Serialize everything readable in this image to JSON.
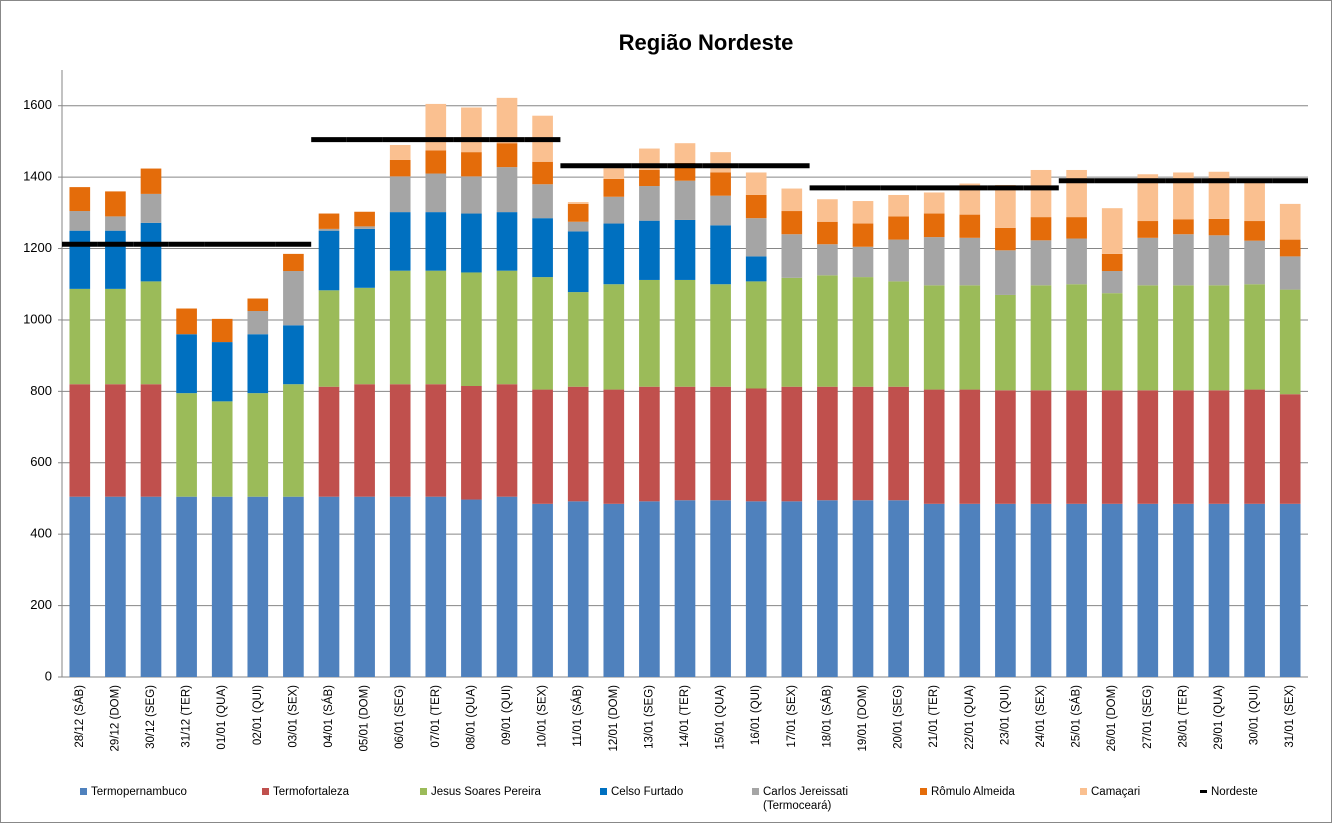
{
  "chart_data": {
    "type": "bar",
    "stacked": true,
    "title": "Região Nordeste",
    "categories": [
      "28/12 (SÁB)",
      "29/12 (DOM)",
      "30/12 (SEG)",
      "31/12 (TER)",
      "01/01 (QUA)",
      "02/01 (QUI)",
      "03/01 (SEX)",
      "04/01 (SÁB)",
      "05/01 (DOM)",
      "06/01 (SEG)",
      "07/01 (TER)",
      "08/01 (QUA)",
      "09/01 (QUI)",
      "10/01 (SEX)",
      "11/01 (SÁB)",
      "12/01 (DOM)",
      "13/01 (SEG)",
      "14/01 (TER)",
      "15/01 (QUA)",
      "16/01 (QUI)",
      "17/01 (SEX)",
      "18/01 (SÁB)",
      "19/01 (DOM)",
      "20/01 (SEG)",
      "21/01 (TER)",
      "22/01 (QUA)",
      "23/01 (QUI)",
      "24/01 (SEX)",
      "25/01 (SÁB)",
      "26/01 (DOM)",
      "27/01 (SEG)",
      "28/01 (TER)",
      "29/01 (QUA)",
      "30/01 (QUI)",
      "31/01 (SEX)"
    ],
    "ylim": [
      0,
      1700
    ],
    "yticks": [
      0,
      200,
      400,
      600,
      800,
      1000,
      1200,
      1400,
      1600
    ],
    "grid": true,
    "series": [
      {
        "name": "Termopernambuco",
        "color": "#4f81bd",
        "values": [
          505,
          505,
          505,
          505,
          505,
          505,
          505,
          505,
          505,
          505,
          505,
          497,
          505,
          485,
          492,
          485,
          492,
          495,
          495,
          492,
          492,
          495,
          495,
          495,
          485,
          485,
          485,
          485,
          485,
          485,
          485,
          485,
          485,
          485,
          485
        ]
      },
      {
        "name": "Termofortaleza",
        "color": "#c0504d",
        "values": [
          315,
          315,
          315,
          0,
          0,
          0,
          0,
          308,
          315,
          315,
          315,
          318,
          315,
          320,
          321,
          320,
          321,
          318,
          318,
          316,
          321,
          318,
          318,
          318,
          320,
          320,
          318,
          318,
          318,
          318,
          318,
          318,
          318,
          320,
          307
        ]
      },
      {
        "name": "Jesus Soares Pereira",
        "color": "#9bbb59",
        "values": [
          267,
          267,
          288,
          290,
          267,
          290,
          315,
          270,
          270,
          318,
          318,
          318,
          318,
          315,
          265,
          295,
          299,
          299,
          287,
          300,
          305,
          312,
          307,
          295,
          292,
          292,
          267,
          294,
          297,
          272,
          294,
          294,
          294,
          295,
          293
        ]
      },
      {
        "name": "Celso Furtado",
        "color": "#0070c0",
        "values": [
          163,
          163,
          164,
          165,
          166,
          165,
          165,
          167,
          165,
          164,
          164,
          165,
          164,
          165,
          170,
          170,
          166,
          168,
          165,
          70,
          0,
          0,
          0,
          0,
          0,
          0,
          0,
          0,
          0,
          0,
          0,
          0,
          0,
          0,
          0
        ]
      },
      {
        "name": "Carlos Jereissati (Termoceará)",
        "color": "#a5a5a5",
        "values": [
          55,
          40,
          81,
          0,
          0,
          65,
          152,
          5,
          7,
          100,
          108,
          104,
          126,
          95,
          27,
          75,
          97,
          110,
          83,
          107,
          122,
          87,
          85,
          117,
          135,
          133,
          125,
          126,
          128,
          62,
          133,
          143,
          140,
          122,
          93
        ]
      },
      {
        "name": "Rômulo Almeida",
        "color": "#e46c0a",
        "values": [
          67,
          70,
          71,
          72,
          65,
          35,
          48,
          43,
          41,
          46,
          65,
          68,
          67,
          63,
          50,
          50,
          45,
          50,
          65,
          65,
          65,
          63,
          65,
          65,
          66,
          65,
          63,
          65,
          60,
          48,
          47,
          42,
          46,
          55,
          47
        ]
      },
      {
        "name": "Camaçari",
        "color": "#fac090",
        "values": [
          0,
          0,
          0,
          0,
          0,
          0,
          0,
          0,
          0,
          42,
          130,
          125,
          127,
          129,
          5,
          30,
          60,
          55,
          57,
          63,
          63,
          63,
          63,
          60,
          59,
          87,
          120,
          132,
          132,
          128,
          131,
          131,
          132,
          108,
          100
        ]
      },
      {
        "name": "Nordeste",
        "color": "#000000",
        "kind": "step",
        "values": [
          1212,
          1212,
          1212,
          1212,
          1212,
          1212,
          1212,
          1505,
          1505,
          1505,
          1505,
          1505,
          1505,
          1505,
          1432,
          1432,
          1432,
          1432,
          1432,
          1432,
          1432,
          1370,
          1370,
          1370,
          1370,
          1370,
          1370,
          1370,
          1390,
          1390,
          1390,
          1390,
          1390,
          1390,
          1390
        ]
      }
    ]
  }
}
